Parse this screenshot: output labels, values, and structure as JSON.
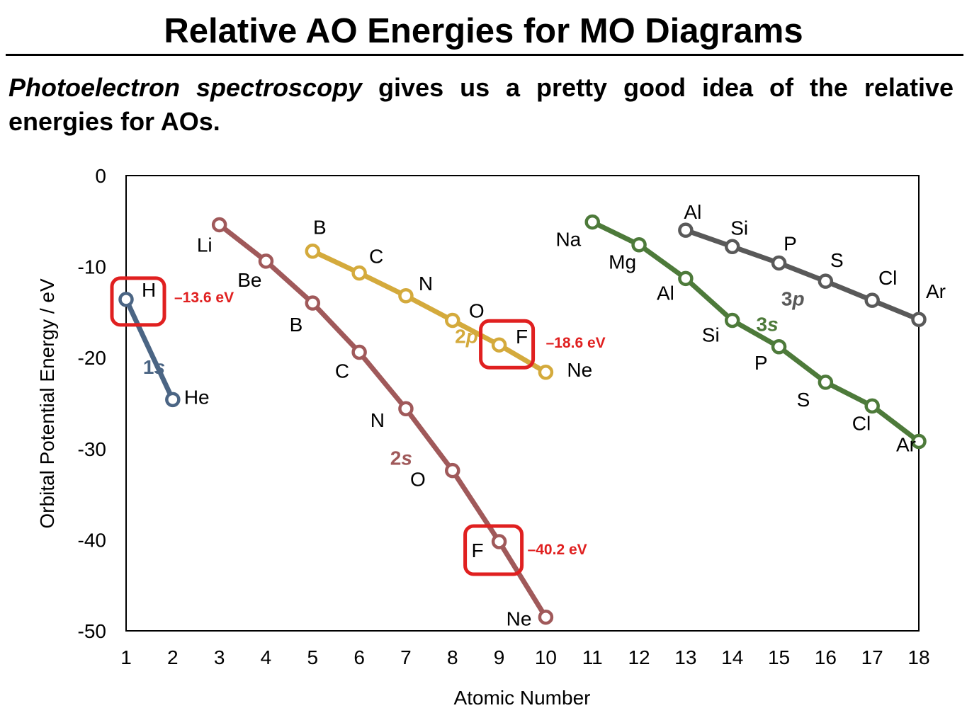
{
  "slide": {
    "title": "Relative AO Energies for MO Diagrams",
    "intro_emphasis": "Photoelectron spectroscopy",
    "intro_rest": " gives us a pretty good idea of the relative energies for AOs."
  },
  "colors": {
    "1s": "#4b6584",
    "2s": "#a0595a",
    "2p": "#d4aa3c",
    "3s": "#4d7a3a",
    "3p": "#595959",
    "highlight": "#e02020",
    "axis": "#000000"
  },
  "chart_data": {
    "type": "line",
    "title": "",
    "xlabel": "Atomic Number",
    "ylabel": "Orbital Potential Energy / eV",
    "xlim": [
      1,
      18
    ],
    "ylim": [
      -50,
      0
    ],
    "xticks": [
      1,
      2,
      3,
      4,
      5,
      6,
      7,
      8,
      9,
      10,
      11,
      12,
      13,
      14,
      15,
      16,
      17,
      18
    ],
    "yticks": [
      0,
      -10,
      -20,
      -30,
      -40,
      -50
    ],
    "grid": false,
    "series": [
      {
        "name": "1s",
        "color_key": "1s",
        "points": [
          {
            "x": 1,
            "y": -13.6,
            "label": "H"
          },
          {
            "x": 2,
            "y": -24.6,
            "label": "He"
          }
        ]
      },
      {
        "name": "2s",
        "color_key": "2s",
        "points": [
          {
            "x": 3,
            "y": -5.4,
            "label": "Li"
          },
          {
            "x": 4,
            "y": -9.4,
            "label": "Be"
          },
          {
            "x": 5,
            "y": -14.0,
            "label": "B"
          },
          {
            "x": 6,
            "y": -19.4,
            "label": "C"
          },
          {
            "x": 7,
            "y": -25.6,
            "label": "N"
          },
          {
            "x": 8,
            "y": -32.4,
            "label": "O"
          },
          {
            "x": 9,
            "y": -40.2,
            "label": "F"
          },
          {
            "x": 10,
            "y": -48.5,
            "label": "Ne"
          }
        ]
      },
      {
        "name": "2p",
        "color_key": "2p",
        "points": [
          {
            "x": 5,
            "y": -8.3,
            "label": "B"
          },
          {
            "x": 6,
            "y": -10.7,
            "label": "C"
          },
          {
            "x": 7,
            "y": -13.2,
            "label": "N"
          },
          {
            "x": 8,
            "y": -15.9,
            "label": "O"
          },
          {
            "x": 9,
            "y": -18.6,
            "label": "F"
          },
          {
            "x": 10,
            "y": -21.6,
            "label": "Ne"
          }
        ]
      },
      {
        "name": "3s",
        "color_key": "3s",
        "points": [
          {
            "x": 11,
            "y": -5.1,
            "label": "Na"
          },
          {
            "x": 12,
            "y": -7.6,
            "label": "Mg"
          },
          {
            "x": 13,
            "y": -11.3,
            "label": "Al"
          },
          {
            "x": 14,
            "y": -15.9,
            "label": "Si"
          },
          {
            "x": 15,
            "y": -18.8,
            "label": "P"
          },
          {
            "x": 16,
            "y": -22.7,
            "label": "S"
          },
          {
            "x": 17,
            "y": -25.3,
            "label": "Cl"
          },
          {
            "x": 18,
            "y": -29.2,
            "label": "Ar"
          }
        ]
      },
      {
        "name": "3p",
        "color_key": "3p",
        "points": [
          {
            "x": 13,
            "y": -6.0,
            "label": "Al"
          },
          {
            "x": 14,
            "y": -7.8,
            "label": "Si"
          },
          {
            "x": 15,
            "y": -9.6,
            "label": "P"
          },
          {
            "x": 16,
            "y": -11.6,
            "label": "S"
          },
          {
            "x": 17,
            "y": -13.7,
            "label": "Cl"
          },
          {
            "x": 18,
            "y": -15.8,
            "label": "Ar"
          }
        ]
      }
    ],
    "annotations": [
      {
        "x": 1,
        "y": -13.6,
        "text": "–13.6 eV"
      },
      {
        "x": 9,
        "y": -18.6,
        "text": "–18.6 eV"
      },
      {
        "x": 9,
        "y": -40.2,
        "text": "–40.2 eV"
      }
    ]
  }
}
